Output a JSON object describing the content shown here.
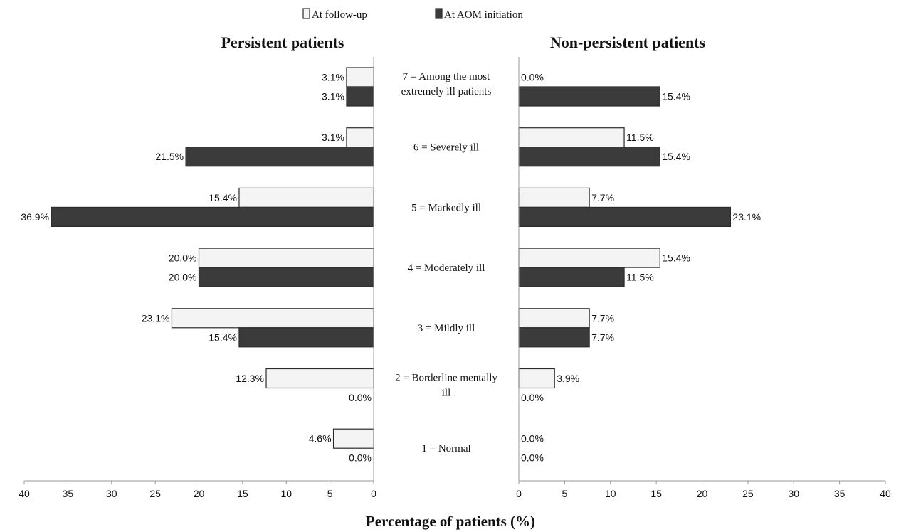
{
  "chart_data": {
    "type": "bar",
    "orientation": "horizontal",
    "layout": "mirrored-two-panel",
    "xlabel": "Percentage of patients (%)",
    "xlim": [
      0,
      40
    ],
    "xticks": [
      0,
      5,
      10,
      15,
      20,
      25,
      30,
      35,
      40
    ],
    "legend": {
      "placement": "top-center",
      "entries": [
        {
          "name": "At follow-up",
          "color": "#f4f4f4"
        },
        {
          "name": "At AOM initiation",
          "color": "#3b3b3b"
        }
      ]
    },
    "categories": [
      {
        "id": "7",
        "lines": [
          "7 = Among the most",
          "extremely ill patients"
        ]
      },
      {
        "id": "6",
        "lines": [
          "6 = Severely ill"
        ]
      },
      {
        "id": "5",
        "lines": [
          "5 = Markedly ill"
        ]
      },
      {
        "id": "4",
        "lines": [
          "4 = Moderately ill"
        ]
      },
      {
        "id": "3",
        "lines": [
          "3 = Mildly ill"
        ]
      },
      {
        "id": "2",
        "lines": [
          "2 = Borderline mentally",
          "ill"
        ]
      },
      {
        "id": "1",
        "lines": [
          "1 = Normal"
        ]
      }
    ],
    "panels": [
      {
        "title": "Persistent patients",
        "direction": "left",
        "series": [
          {
            "name": "At follow-up",
            "values": [
              3.1,
              3.1,
              15.4,
              20.0,
              23.1,
              12.3,
              4.6
            ],
            "labels": [
              "3.1%",
              "3.1%",
              "15.4%",
              "20.0%",
              "23.1%",
              "12.3%",
              "4.6%"
            ]
          },
          {
            "name": "At AOM initiation",
            "values": [
              3.1,
              21.5,
              36.9,
              20.0,
              15.4,
              0.0,
              0.0
            ],
            "labels": [
              "3.1%",
              "21.5%",
              "36.9%",
              "20.0%",
              "15.4%",
              "0.0%",
              "0.0%"
            ]
          }
        ]
      },
      {
        "title": "Non-persistent patients",
        "direction": "right",
        "series": [
          {
            "name": "At follow-up",
            "values": [
              0.0,
              11.5,
              7.7,
              15.4,
              7.7,
              3.9,
              0.0
            ],
            "labels": [
              "0.0%",
              "11.5%",
              "7.7%",
              "15.4%",
              "7.7%",
              "3.9%",
              "0.0%"
            ]
          },
          {
            "name": "At AOM initiation",
            "values": [
              15.4,
              15.4,
              23.1,
              11.5,
              7.7,
              0.0,
              0.0
            ],
            "labels": [
              "15.4%",
              "15.4%",
              "23.1%",
              "11.5%",
              "7.7%",
              "0.0%",
              "0.0%"
            ]
          }
        ]
      }
    ]
  }
}
